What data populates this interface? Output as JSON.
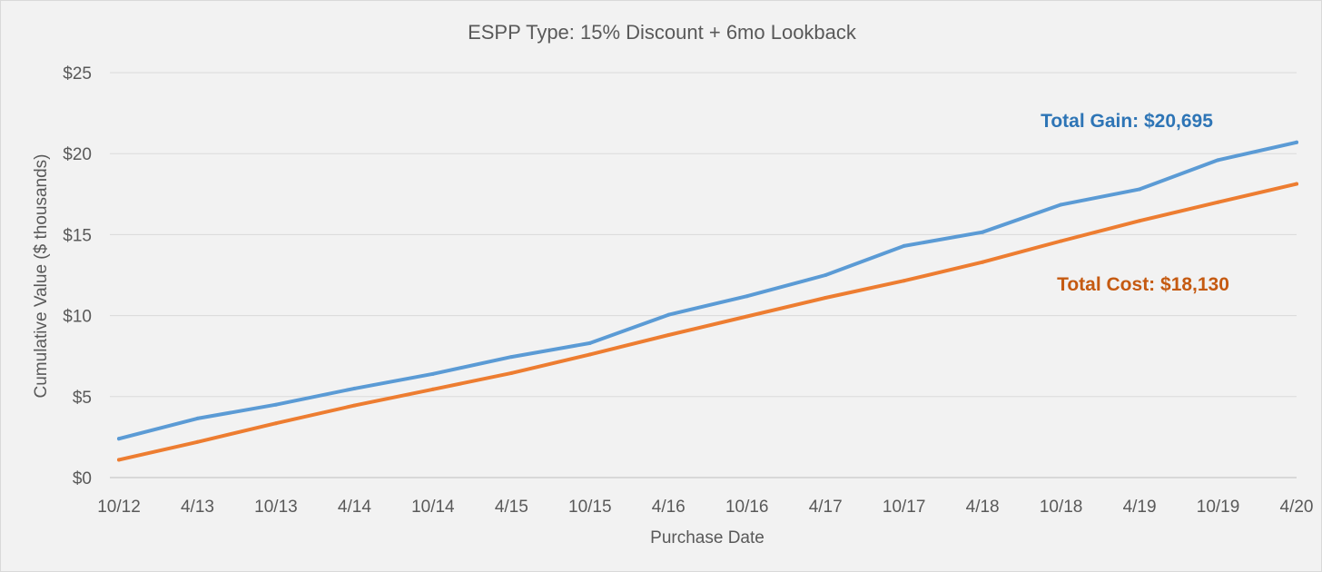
{
  "chart_data": {
    "type": "line",
    "title": "ESPP Type: 15% Discount + 6mo Lookback",
    "xlabel": "Purchase Date",
    "ylabel": "Cumulative Value ($ thousands)",
    "categories": [
      "10/12",
      "4/13",
      "10/13",
      "4/14",
      "10/14",
      "4/15",
      "10/15",
      "4/16",
      "10/16",
      "4/17",
      "10/17",
      "4/18",
      "10/18",
      "4/19",
      "10/19",
      "4/20"
    ],
    "y_tick_labels": [
      "$0",
      "$5",
      "$10",
      "$15",
      "$20",
      "$25"
    ],
    "y_ticks": [
      0,
      5,
      10,
      15,
      20,
      25
    ],
    "ylim": [
      0,
      25
    ],
    "grid": true,
    "series": [
      {
        "key": "gain",
        "values": [
          2.4,
          3.65,
          4.5,
          5.5,
          6.4,
          7.45,
          8.3,
          10.05,
          11.2,
          12.5,
          14.3,
          15.15,
          16.85,
          17.8,
          19.6,
          20.695
        ],
        "color": "#5b9bd5"
      },
      {
        "key": "cost",
        "values": [
          1.1,
          2.2,
          3.35,
          4.45,
          5.45,
          6.45,
          7.6,
          8.8,
          9.95,
          11.1,
          12.15,
          13.3,
          14.6,
          15.85,
          17.0,
          18.13
        ],
        "color": "#ed7d31"
      }
    ],
    "annotations": [
      {
        "text": "Total Gain: $20,695",
        "series": "gain",
        "color": "#2e75b6"
      },
      {
        "text": "Total Cost: $18,130",
        "series": "cost",
        "color": "#c55a11"
      }
    ]
  }
}
